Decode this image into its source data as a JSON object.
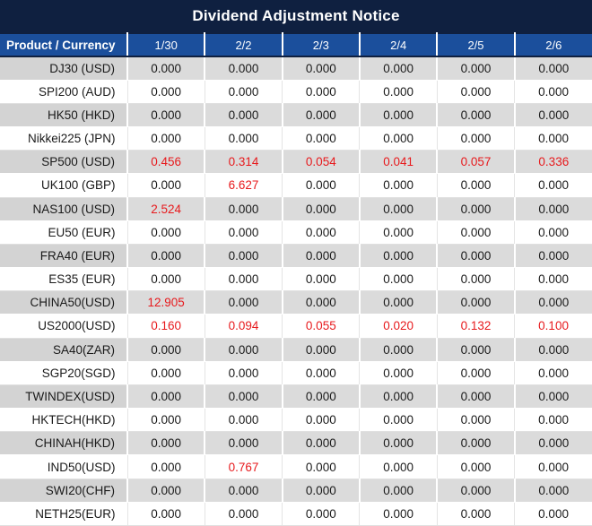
{
  "title": "Dividend Adjustment Notice",
  "colors": {
    "title_bar_bg": "#0f2040",
    "header_bg": "#1b4f9c",
    "alt_row_product_bg": "#d3d3d3",
    "alt_row_value_bg": "#dbdbdb",
    "highlight_red": "#e71a1d"
  },
  "table": {
    "header": [
      "Product / Currency",
      "1/30",
      "2/2",
      "2/3",
      "2/4",
      "2/5",
      "2/6"
    ],
    "rows": [
      {
        "product": "DJ30 (USD)",
        "values": [
          "0.000",
          "0.000",
          "0.000",
          "0.000",
          "0.000",
          "0.000"
        ],
        "red": [
          false,
          false,
          false,
          false,
          false,
          false
        ]
      },
      {
        "product": "SPI200 (AUD)",
        "values": [
          "0.000",
          "0.000",
          "0.000",
          "0.000",
          "0.000",
          "0.000"
        ],
        "red": [
          false,
          false,
          false,
          false,
          false,
          false
        ]
      },
      {
        "product": "HK50 (HKD)",
        "values": [
          "0.000",
          "0.000",
          "0.000",
          "0.000",
          "0.000",
          "0.000"
        ],
        "red": [
          false,
          false,
          false,
          false,
          false,
          false
        ]
      },
      {
        "product": "Nikkei225 (JPN)",
        "values": [
          "0.000",
          "0.000",
          "0.000",
          "0.000",
          "0.000",
          "0.000"
        ],
        "red": [
          false,
          false,
          false,
          false,
          false,
          false
        ]
      },
      {
        "product": "SP500 (USD)",
        "values": [
          "0.456",
          "0.314",
          "0.054",
          "0.041",
          "0.057",
          "0.336"
        ],
        "red": [
          true,
          true,
          true,
          true,
          true,
          true
        ]
      },
      {
        "product": "UK100 (GBP)",
        "values": [
          "0.000",
          "6.627",
          "0.000",
          "0.000",
          "0.000",
          "0.000"
        ],
        "red": [
          false,
          true,
          false,
          false,
          false,
          false
        ]
      },
      {
        "product": "NAS100 (USD)",
        "values": [
          "2.524",
          "0.000",
          "0.000",
          "0.000",
          "0.000",
          "0.000"
        ],
        "red": [
          true,
          false,
          false,
          false,
          false,
          false
        ]
      },
      {
        "product": "EU50 (EUR)",
        "values": [
          "0.000",
          "0.000",
          "0.000",
          "0.000",
          "0.000",
          "0.000"
        ],
        "red": [
          false,
          false,
          false,
          false,
          false,
          false
        ]
      },
      {
        "product": "FRA40 (EUR)",
        "values": [
          "0.000",
          "0.000",
          "0.000",
          "0.000",
          "0.000",
          "0.000"
        ],
        "red": [
          false,
          false,
          false,
          false,
          false,
          false
        ]
      },
      {
        "product": "ES35 (EUR)",
        "values": [
          "0.000",
          "0.000",
          "0.000",
          "0.000",
          "0.000",
          "0.000"
        ],
        "red": [
          false,
          false,
          false,
          false,
          false,
          false
        ]
      },
      {
        "product": "CHINA50(USD)",
        "values": [
          "12.905",
          "0.000",
          "0.000",
          "0.000",
          "0.000",
          "0.000"
        ],
        "red": [
          true,
          false,
          false,
          false,
          false,
          false
        ]
      },
      {
        "product": "US2000(USD)",
        "values": [
          "0.160",
          "0.094",
          "0.055",
          "0.020",
          "0.132",
          "0.100"
        ],
        "red": [
          true,
          true,
          true,
          true,
          true,
          true
        ]
      },
      {
        "product": "SA40(ZAR)",
        "values": [
          "0.000",
          "0.000",
          "0.000",
          "0.000",
          "0.000",
          "0.000"
        ],
        "red": [
          false,
          false,
          false,
          false,
          false,
          false
        ]
      },
      {
        "product": "SGP20(SGD)",
        "values": [
          "0.000",
          "0.000",
          "0.000",
          "0.000",
          "0.000",
          "0.000"
        ],
        "red": [
          false,
          false,
          false,
          false,
          false,
          false
        ]
      },
      {
        "product": "TWINDEX(USD)",
        "values": [
          "0.000",
          "0.000",
          "0.000",
          "0.000",
          "0.000",
          "0.000"
        ],
        "red": [
          false,
          false,
          false,
          false,
          false,
          false
        ]
      },
      {
        "product": "HKTECH(HKD)",
        "values": [
          "0.000",
          "0.000",
          "0.000",
          "0.000",
          "0.000",
          "0.000"
        ],
        "red": [
          false,
          false,
          false,
          false,
          false,
          false
        ]
      },
      {
        "product": "CHINAH(HKD)",
        "values": [
          "0.000",
          "0.000",
          "0.000",
          "0.000",
          "0.000",
          "0.000"
        ],
        "red": [
          false,
          false,
          false,
          false,
          false,
          false
        ]
      },
      {
        "product": "IND50(USD)",
        "values": [
          "0.000",
          "0.767",
          "0.000",
          "0.000",
          "0.000",
          "0.000"
        ],
        "red": [
          false,
          true,
          false,
          false,
          false,
          false
        ]
      },
      {
        "product": "SWI20(CHF)",
        "values": [
          "0.000",
          "0.000",
          "0.000",
          "0.000",
          "0.000",
          "0.000"
        ],
        "red": [
          false,
          false,
          false,
          false,
          false,
          false
        ]
      },
      {
        "product": "NETH25(EUR)",
        "values": [
          "0.000",
          "0.000",
          "0.000",
          "0.000",
          "0.000",
          "0.000"
        ],
        "red": [
          false,
          false,
          false,
          false,
          false,
          false
        ]
      }
    ]
  }
}
